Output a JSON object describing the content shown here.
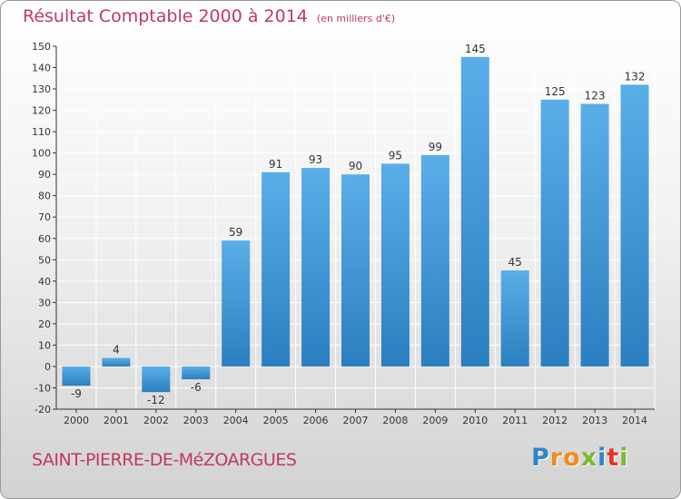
{
  "colors": {
    "title": "#c0395e",
    "bar_light": "#5aaee8",
    "bar_dark": "#2a7fc0",
    "axis": "#333333",
    "grid": "#ffffff"
  },
  "commune": "SAINT-PIERRE-DE-MéZOARGUES",
  "brand": {
    "letters": [
      {
        "ch": "P",
        "color": "#2f86c9"
      },
      {
        "ch": "r",
        "color": "#f28c1c"
      },
      {
        "ch": "o",
        "color": "#f28c1c"
      },
      {
        "ch": "x",
        "color": "#7bb82a"
      },
      {
        "ch": "i",
        "color": "#2f86c9"
      },
      {
        "ch": "t",
        "color": "#e0352b"
      },
      {
        "ch": "i",
        "color": "#7bb82a"
      }
    ]
  },
  "chart_data": {
    "type": "bar",
    "title": "Résultat Comptable 2000 à 2014",
    "units": "(en milliers d'€)",
    "categories": [
      "2000",
      "2001",
      "2002",
      "2003",
      "2004",
      "2005",
      "2006",
      "2007",
      "2008",
      "2009",
      "2010",
      "2011",
      "2012",
      "2013",
      "2014"
    ],
    "values": [
      -9,
      4,
      -12,
      -6,
      59,
      91,
      93,
      90,
      95,
      99,
      145,
      45,
      125,
      123,
      132
    ],
    "ylim": [
      -20,
      150
    ],
    "yticks": [
      -20,
      -10,
      0,
      10,
      20,
      30,
      40,
      50,
      60,
      70,
      80,
      90,
      100,
      110,
      120,
      130,
      140,
      150
    ],
    "grid": true,
    "legend": "none"
  }
}
